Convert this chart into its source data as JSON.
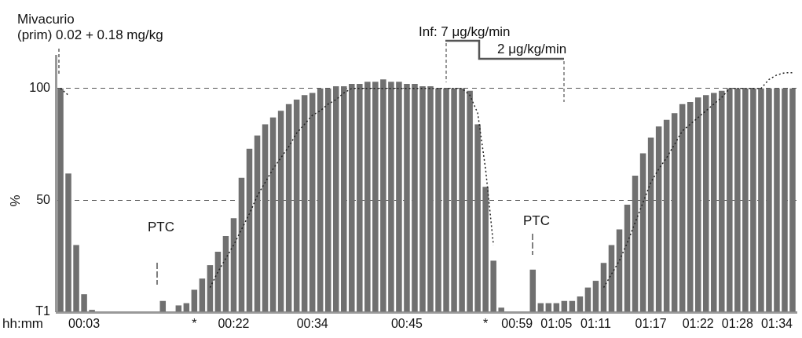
{
  "chart_data": {
    "type": "bar",
    "title": "Mivacurio",
    "subtitle": "(prim) 0.02 + 0.18 mg/kg",
    "xlabel": "hh:mm",
    "ylabel": "%",
    "categories": [
      null,
      null,
      null,
      "00:03",
      null,
      null,
      null,
      null,
      null,
      null,
      null,
      null,
      null,
      null,
      null,
      null,
      null,
      "*",
      null,
      null,
      null,
      null,
      "00:22",
      null,
      null,
      null,
      null,
      null,
      null,
      null,
      null,
      null,
      "00:34",
      null,
      null,
      null,
      null,
      null,
      null,
      null,
      null,
      null,
      null,
      null,
      "00:45",
      null,
      null,
      null,
      null,
      null,
      null,
      null,
      null,
      null,
      "*",
      null,
      null,
      null,
      "00:59",
      null,
      null,
      null,
      null,
      "01:05",
      null,
      null,
      null,
      null,
      "01:11",
      null,
      null,
      null,
      null,
      null,
      null,
      "01:17",
      null,
      null,
      null,
      null,
      null,
      "01:22",
      null,
      null,
      null,
      null,
      "01:28",
      null,
      null,
      null,
      null,
      "01:34",
      null,
      null
    ],
    "series": [
      {
        "color": "#707070",
        "values": [
          100,
          62,
          30,
          8,
          1,
          0,
          0,
          0,
          0,
          0,
          0,
          0,
          0,
          5,
          0,
          3,
          4,
          10,
          15,
          21,
          27,
          34,
          42,
          60,
          73,
          79,
          84,
          87,
          90,
          93,
          95,
          97,
          98,
          100,
          100,
          101,
          101,
          102,
          102,
          103,
          103,
          104,
          103,
          103,
          102,
          102,
          101,
          101,
          100,
          100,
          100,
          100,
          99,
          84,
          56,
          23,
          2,
          0,
          0,
          0,
          19,
          4,
          4,
          4,
          5,
          5,
          7,
          11,
          14,
          22,
          30,
          37,
          48,
          61,
          71,
          78,
          83,
          86,
          89,
          93,
          94,
          96,
          97,
          98,
          99,
          100,
          100,
          100,
          100,
          100,
          100,
          100,
          100,
          100
        ]
      },
      {
        "type": "line",
        "color": "#222222",
        "line_style": "dotted",
        "values": [
          100,
          97,
          null,
          null,
          null,
          null,
          null,
          null,
          null,
          null,
          null,
          null,
          null,
          null,
          null,
          null,
          null,
          null,
          null,
          11,
          18,
          24,
          30,
          37,
          44,
          52,
          58,
          64,
          69,
          74,
          80,
          84,
          88,
          90,
          93,
          95,
          98,
          100,
          100,
          100,
          100,
          100,
          100,
          100,
          100,
          100,
          100,
          100,
          100,
          100,
          100,
          100,
          97,
          89,
          64,
          30,
          null,
          null,
          null,
          null,
          null,
          null,
          null,
          null,
          null,
          null,
          null,
          null,
          null,
          11,
          17,
          23,
          31,
          40,
          49,
          58,
          64,
          69,
          75,
          81,
          84,
          87,
          90,
          93,
          96,
          100,
          100,
          100,
          100,
          100,
          104,
          106,
          107,
          107
        ]
      }
    ],
    "ylim": [
      0,
      115
    ],
    "yticks": [
      {
        "value": 0,
        "label": "T1"
      },
      50,
      100
    ],
    "grid": "y",
    "marker": "none",
    "legend": false,
    "annotations": [
      "PTC",
      "PTC",
      "Inf: 7 μg/kg/min",
      "2 μg/kg/min"
    ]
  }
}
